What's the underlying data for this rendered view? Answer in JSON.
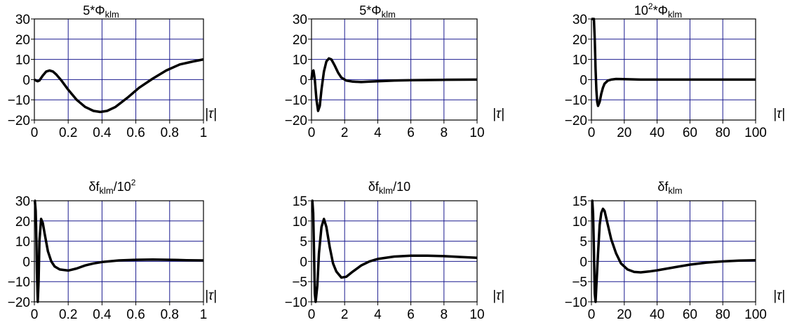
{
  "chart_data": [
    {
      "type": "line",
      "title": {
        "prefix": "5*Φ",
        "sub": "klm",
        "sup": "",
        "suffix": ""
      },
      "xlabel": "|τ|",
      "xlim": [
        0,
        1
      ],
      "ylim": [
        -20,
        30
      ],
      "xticks": [
        0,
        0.2,
        0.4,
        0.6,
        0.8,
        1
      ],
      "xtick_labels": [
        "0",
        "0.2",
        "0.4",
        "0.6",
        "0.8",
        "1"
      ],
      "yticks": [
        -20,
        -10,
        0,
        10,
        20,
        30
      ],
      "ytick_labels": [
        "−20",
        "−10",
        "0",
        "10",
        "20",
        "30"
      ],
      "grid": true,
      "series": [
        {
          "x": [
            0,
            0.01,
            0.02,
            0.03,
            0.05,
            0.07,
            0.09,
            0.11,
            0.13,
            0.16,
            0.2,
            0.25,
            0.3,
            0.35,
            0.39,
            0.43,
            0.48,
            0.55,
            0.62,
            0.7,
            0.78,
            0.86,
            0.94,
            1.0
          ],
          "y": [
            0,
            -0.5,
            -0.8,
            -0.4,
            2,
            4,
            4.5,
            4,
            2.5,
            -0.5,
            -5,
            -10,
            -13.5,
            -15.5,
            -16,
            -15.5,
            -13.5,
            -9,
            -4,
            0.5,
            4.5,
            7.5,
            9,
            10
          ]
        }
      ]
    },
    {
      "type": "line",
      "title": {
        "prefix": "5*Φ",
        "sub": "klm",
        "sup": "",
        "suffix": ""
      },
      "xlabel": "|τ|",
      "xlim": [
        0,
        10
      ],
      "ylim": [
        -20,
        30
      ],
      "xticks": [
        0,
        2,
        4,
        6,
        8,
        10
      ],
      "xtick_labels": [
        "0",
        "2",
        "4",
        "6",
        "8",
        "10"
      ],
      "yticks": [
        -20,
        -10,
        0,
        10,
        20,
        30
      ],
      "ytick_labels": [
        "−20",
        "−10",
        "0",
        "10",
        "20",
        "30"
      ],
      "grid": true,
      "series": [
        {
          "x": [
            0,
            0.05,
            0.12,
            0.2,
            0.3,
            0.4,
            0.5,
            0.6,
            0.75,
            0.9,
            1.05,
            1.2,
            1.4,
            1.6,
            1.8,
            2.1,
            2.5,
            3,
            3.5,
            4,
            5,
            6,
            7,
            8,
            10
          ],
          "y": [
            0,
            4,
            4.5,
            0,
            -10,
            -15.5,
            -13,
            -5,
            4,
            9,
            10.5,
            10,
            7,
            3.5,
            1,
            -0.5,
            -1,
            -1.2,
            -1,
            -0.8,
            -0.5,
            -0.3,
            -0.2,
            -0.1,
            0
          ]
        }
      ]
    },
    {
      "type": "line",
      "title": {
        "prefix": "10",
        "sub": "klm",
        "sup": "2",
        "suffix": "*Φ"
      },
      "xlabel": "|τ|",
      "xlim": [
        0,
        100
      ],
      "ylim": [
        -20,
        30
      ],
      "xticks": [
        0,
        20,
        40,
        60,
        80,
        100
      ],
      "xtick_labels": [
        "0",
        "20",
        "40",
        "60",
        "80",
        "100"
      ],
      "yticks": [
        -20,
        -10,
        0,
        10,
        20,
        30
      ],
      "ytick_labels": [
        "−20",
        "−10",
        "0",
        "10",
        "20",
        "30"
      ],
      "grid": true,
      "series": [
        {
          "x": [
            0,
            0.2,
            0.5,
            1,
            1.5,
            2,
            2.5,
            3,
            3.5,
            4,
            5,
            6,
            7,
            8,
            10,
            12,
            15,
            20,
            30,
            50,
            70,
            100
          ],
          "y": [
            30,
            30,
            30,
            30,
            30,
            20,
            5,
            -5,
            -11,
            -13,
            -11,
            -7,
            -4,
            -2,
            -0.5,
            0,
            0.3,
            0.2,
            0,
            0,
            0,
            0
          ]
        }
      ]
    },
    {
      "type": "line",
      "title": {
        "prefix": "δf",
        "sub": "klm",
        "sup": "2",
        "suffix": "/10"
      },
      "xlabel": "|τ|",
      "xlim": [
        0,
        1
      ],
      "ylim": [
        -20,
        30
      ],
      "xticks": [
        0,
        0.2,
        0.4,
        0.6,
        0.8,
        1
      ],
      "xtick_labels": [
        "0",
        "0.2",
        "0.4",
        "0.6",
        "0.8",
        "1"
      ],
      "yticks": [
        -20,
        -10,
        0,
        10,
        20,
        30
      ],
      "ytick_labels": [
        "−20",
        "−10",
        "0",
        "10",
        "20",
        "30"
      ],
      "grid": true,
      "series": [
        {
          "x": [
            0,
            0.003,
            0.008,
            0.012,
            0.015,
            0.02,
            0.025,
            0.03,
            0.04,
            0.05,
            0.06,
            0.08,
            0.1,
            0.12,
            0.15,
            0.2,
            0.25,
            0.3,
            0.35,
            0.4,
            0.5,
            0.6,
            0.7,
            0.8,
            0.9,
            1.0
          ],
          "y": [
            30,
            30,
            25,
            10,
            -5,
            -20,
            -10,
            10,
            21,
            19,
            14,
            5,
            0,
            -2.5,
            -4,
            -4.5,
            -3.5,
            -2,
            -1,
            -0.3,
            0.5,
            0.8,
            0.9,
            0.8,
            0.6,
            0.5
          ]
        }
      ]
    },
    {
      "type": "line",
      "title": {
        "prefix": "δf",
        "sub": "klm",
        "sup": "",
        "suffix": "/10"
      },
      "xlabel": "|τ|",
      "xlim": [
        0,
        10
      ],
      "ylim": [
        -10,
        15
      ],
      "xticks": [
        0,
        2,
        4,
        6,
        8,
        10
      ],
      "xtick_labels": [
        "0",
        "2",
        "4",
        "6",
        "8",
        "10"
      ],
      "yticks": [
        -10,
        -5,
        0,
        5,
        10,
        15
      ],
      "ytick_labels": [
        "−10",
        "−5",
        "0",
        "5",
        "10",
        "15"
      ],
      "grid": true,
      "series": [
        {
          "x": [
            0,
            0.05,
            0.1,
            0.15,
            0.2,
            0.25,
            0.35,
            0.45,
            0.6,
            0.75,
            0.9,
            1.1,
            1.3,
            1.5,
            1.8,
            2.1,
            2.5,
            3,
            3.5,
            4,
            5,
            6,
            7,
            8,
            9,
            10
          ],
          "y": [
            15,
            15,
            12,
            3,
            -8,
            -10,
            -6,
            2,
            8.5,
            10.5,
            8.5,
            3.5,
            -0.5,
            -2.5,
            -4,
            -3.8,
            -2.5,
            -1,
            0,
            0.6,
            1.2,
            1.4,
            1.4,
            1.3,
            1.1,
            0.9
          ]
        }
      ]
    },
    {
      "type": "line",
      "title": {
        "prefix": "δf",
        "sub": "klm",
        "sup": "",
        "suffix": ""
      },
      "xlabel": "|τ|",
      "xlim": [
        0,
        100
      ],
      "ylim": [
        -10,
        15
      ],
      "xticks": [
        0,
        20,
        40,
        60,
        80,
        100
      ],
      "xtick_labels": [
        "0",
        "20",
        "40",
        "60",
        "80",
        "100"
      ],
      "yticks": [
        -10,
        -5,
        0,
        5,
        10,
        15
      ],
      "ytick_labels": [
        "−10",
        "−5",
        "0",
        "5",
        "10",
        "15"
      ],
      "grid": true,
      "series": [
        {
          "x": [
            0,
            0.5,
            1,
            1.5,
            2,
            2.5,
            3,
            4,
            5,
            6,
            7,
            8,
            10,
            12,
            15,
            18,
            22,
            26,
            30,
            35,
            40,
            50,
            60,
            70,
            80,
            90,
            100
          ],
          "y": [
            15,
            15,
            12,
            3,
            -8,
            -10,
            -6,
            2,
            9,
            12,
            13,
            12.5,
            9,
            5.5,
            2,
            -0.5,
            -2,
            -2.6,
            -2.7,
            -2.5,
            -2.2,
            -1.5,
            -0.8,
            -0.3,
            0,
            0.2,
            0.3
          ]
        }
      ]
    }
  ]
}
